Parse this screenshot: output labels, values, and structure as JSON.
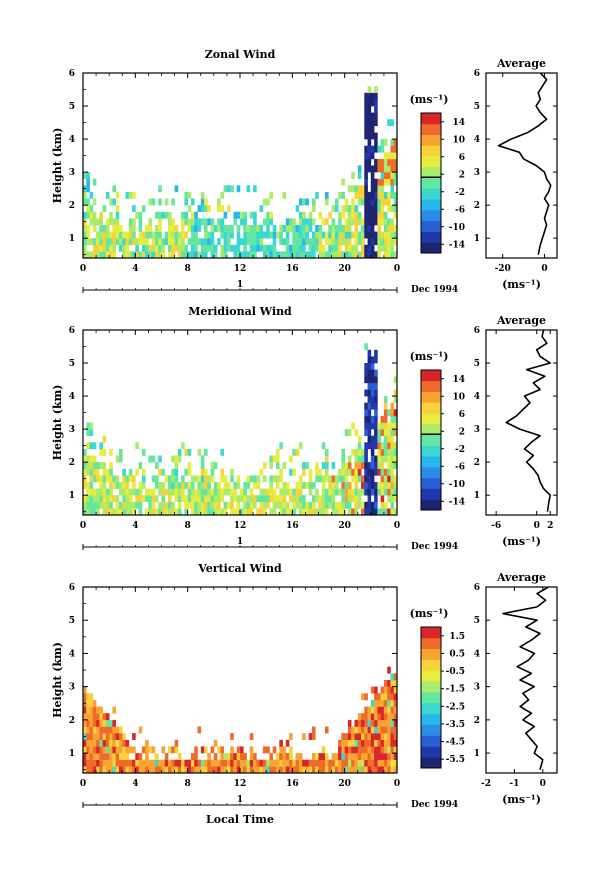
{
  "colors": {
    "colormap": [
      "#1e2470",
      "#1f37a8",
      "#2a5fd6",
      "#2b8be6",
      "#27b7e8",
      "#3ad8d0",
      "#64e6a0",
      "#a9ec6c",
      "#e6ec40",
      "#f7d23a",
      "#f7a432",
      "#f06a2c",
      "#d9262a"
    ],
    "axis": "#000000",
    "background": "#ffffff"
  },
  "chart_data": [
    {
      "type": "heatmap",
      "title": "Zonal Wind",
      "xlabel": "",
      "ylabel": "Height (km)",
      "xlim": [
        0,
        24
      ],
      "ylim": [
        0.4,
        6
      ],
      "xticks": [
        "0",
        "4",
        "8",
        "12",
        "16",
        "20",
        "0"
      ],
      "xtick_values": [
        0,
        4,
        8,
        12,
        16,
        20,
        24
      ],
      "yticks": [
        "1",
        "2",
        "3",
        "4",
        "5",
        "6"
      ],
      "date_axis_label": "1",
      "date_label": "Dec 1994",
      "colorbar": {
        "unit": "(ms⁻¹)",
        "ticks": [
          "14",
          "10",
          "6",
          "2",
          "-2",
          "-6",
          "-10",
          "-14"
        ],
        "range": [
          -16,
          16
        ],
        "highlight": 2
      },
      "pattern": "zonal",
      "average": {
        "title": "Average",
        "unit": "(ms⁻¹)",
        "xticks": [
          "-20",
          "0"
        ],
        "xtick_values": [
          -20,
          0
        ],
        "xlim": [
          -28,
          6
        ],
        "yticks": [
          "1",
          "2",
          "3",
          "4",
          "5",
          "6"
        ],
        "height": [
          0.5,
          0.8,
          1.0,
          1.2,
          1.4,
          1.6,
          1.8,
          2.0,
          2.2,
          2.4,
          2.6,
          2.8,
          3.0,
          3.2,
          3.4,
          3.6,
          3.8,
          4.0,
          4.2,
          4.4,
          4.6,
          4.8,
          5.0,
          5.2,
          5.4,
          5.6,
          5.8,
          6.0
        ],
        "value": [
          -3,
          -2,
          -1,
          0,
          1,
          0,
          1,
          2,
          0,
          2,
          3,
          1,
          0,
          -4,
          -10,
          -12,
          -22,
          -16,
          -8,
          -3,
          1,
          -2,
          -4,
          -2,
          -3,
          -1,
          1,
          -2
        ]
      }
    },
    {
      "type": "heatmap",
      "title": "Meridional Wind",
      "xlabel": "",
      "ylabel": "Height (km)",
      "xlim": [
        0,
        24
      ],
      "ylim": [
        0.4,
        6
      ],
      "xticks": [
        "0",
        "4",
        "8",
        "12",
        "16",
        "20",
        "0"
      ],
      "xtick_values": [
        0,
        4,
        8,
        12,
        16,
        20,
        24
      ],
      "yticks": [
        "1",
        "2",
        "3",
        "4",
        "5",
        "6"
      ],
      "date_axis_label": "1",
      "date_label": "Dec 1994",
      "colorbar": {
        "unit": "(ms⁻¹)",
        "ticks": [
          "14",
          "10",
          "6",
          "2",
          "-2",
          "-6",
          "-10",
          "-14"
        ],
        "range": [
          -16,
          16
        ],
        "highlight": 2
      },
      "pattern": "meridional",
      "average": {
        "title": "Average",
        "unit": "(ms⁻¹)",
        "xticks": [
          "-6",
          "0",
          "2"
        ],
        "xtick_values": [
          -6,
          0,
          2
        ],
        "xlim": [
          -7.5,
          3
        ],
        "yticks": [
          "1",
          "2",
          "3",
          "4",
          "5",
          "6"
        ],
        "height": [
          0.5,
          0.8,
          1.0,
          1.2,
          1.4,
          1.6,
          1.8,
          2.0,
          2.2,
          2.4,
          2.6,
          2.8,
          3.0,
          3.2,
          3.4,
          3.6,
          3.8,
          4.0,
          4.2,
          4.4,
          4.6,
          4.8,
          5.0,
          5.2,
          5.4,
          5.6,
          5.8,
          6.0
        ],
        "value": [
          1.6,
          1.8,
          2.0,
          1.0,
          0.5,
          0.2,
          -0.5,
          -1.5,
          -0.5,
          -1.8,
          -0.8,
          0.5,
          -2.5,
          -4.5,
          -3.0,
          -2.0,
          -1.0,
          -1.8,
          0.5,
          -0.5,
          1.2,
          -1.5,
          2.0,
          0.5,
          0.0,
          1.5,
          0.8,
          1.0
        ]
      }
    },
    {
      "type": "heatmap",
      "title": "Vertical Wind",
      "xlabel": "Local Time",
      "ylabel": "Height (km)",
      "xlim": [
        0,
        24
      ],
      "ylim": [
        0.4,
        6
      ],
      "xticks": [
        "0",
        "4",
        "8",
        "12",
        "16",
        "20",
        "0"
      ],
      "xtick_values": [
        0,
        4,
        8,
        12,
        16,
        20,
        24
      ],
      "yticks": [
        "1",
        "2",
        "3",
        "4",
        "5",
        "6"
      ],
      "date_axis_label": "1",
      "date_label": "Dec 1994",
      "colorbar": {
        "unit": "(ms⁻¹)",
        "ticks": [
          "1.5",
          "0.5",
          "-0.5",
          "-1.5",
          "-2.5",
          "-3.5",
          "-4.5",
          "-5.5"
        ],
        "range": [
          -6,
          2
        ],
        "highlight": null
      },
      "pattern": "vertical",
      "average": {
        "title": "Average",
        "unit": "(ms⁻¹)",
        "xticks": [
          "-2",
          "-1",
          "0"
        ],
        "xtick_values": [
          -2,
          -1,
          0
        ],
        "xlim": [
          -2.0,
          0.5
        ],
        "yticks": [
          "1",
          "2",
          "3",
          "4",
          "5",
          "6"
        ],
        "height": [
          0.5,
          0.8,
          1.0,
          1.2,
          1.4,
          1.6,
          1.8,
          2.0,
          2.2,
          2.4,
          2.6,
          2.8,
          3.0,
          3.2,
          3.4,
          3.6,
          3.8,
          4.0,
          4.2,
          4.4,
          4.6,
          4.8,
          5.0,
          5.2,
          5.4,
          5.6,
          5.8,
          6.0
        ],
        "value": [
          -0.1,
          0.0,
          -0.3,
          -0.2,
          -0.4,
          -0.6,
          -0.3,
          -0.7,
          -0.4,
          -0.8,
          -0.5,
          -0.7,
          -0.3,
          -0.8,
          -0.4,
          -0.9,
          -0.5,
          -0.3,
          -0.8,
          -0.4,
          -0.1,
          -0.6,
          -0.2,
          -1.4,
          -0.2,
          0.1,
          -0.2,
          0.2
        ]
      }
    }
  ]
}
